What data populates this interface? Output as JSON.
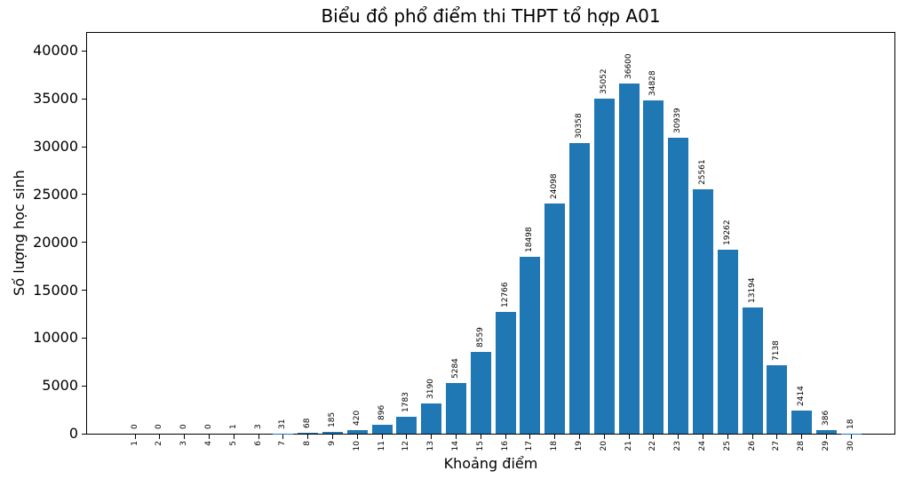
{
  "chart_data": {
    "type": "bar",
    "title": "Biểu đồ phổ điểm thi THPT tổ hợp A01",
    "xlabel": "Khoảng điểm",
    "ylabel": "Số lượng học sinh",
    "categories": [
      1,
      2,
      3,
      4,
      5,
      6,
      7,
      8,
      9,
      10,
      11,
      12,
      13,
      14,
      15,
      16,
      17,
      18,
      19,
      20,
      21,
      22,
      23,
      24,
      25,
      26,
      27,
      28,
      29,
      30
    ],
    "values": [
      0,
      0,
      0,
      0,
      1,
      3,
      31,
      68,
      185,
      420,
      896,
      1783,
      3190,
      5284,
      8559,
      12766,
      18498,
      24098,
      30358,
      35052,
      36600,
      34828,
      30939,
      25561,
      19262,
      13194,
      7138,
      2414,
      386,
      18
    ],
    "yticks": [
      0,
      5000,
      10000,
      15000,
      20000,
      25000,
      30000,
      35000,
      40000
    ],
    "ylim": [
      0,
      41900
    ],
    "bar_color": "#1f77b4",
    "grid": false,
    "value_labels": true,
    "tick_label_rotation": 90,
    "legend": "none"
  }
}
